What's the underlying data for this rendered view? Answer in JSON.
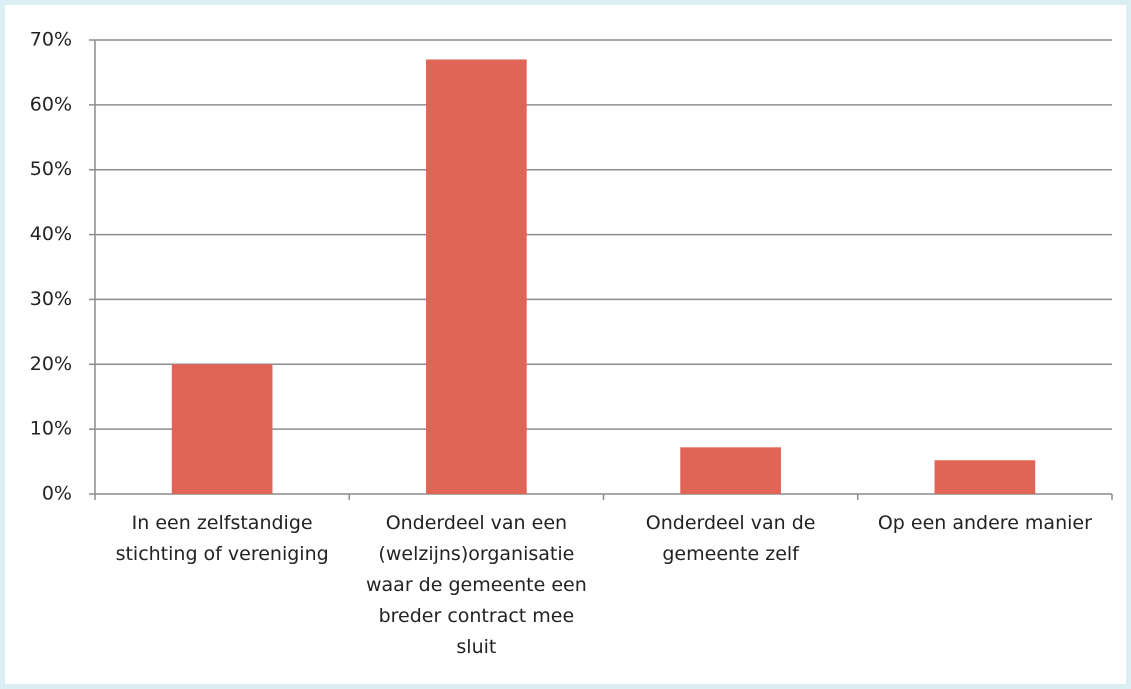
{
  "chart_data": {
    "type": "bar",
    "categories": [
      "In een zelfstandige stichting of vereniging",
      "Onderdeel van een (welzijns)organisatie waar de gemeente een breder contract mee sluit",
      "Onderdeel van de gemeente zelf",
      "Op een andere manier"
    ],
    "values": [
      20,
      67,
      7.2,
      5.2
    ],
    "color": "#e06557",
    "ylim": [
      0,
      70
    ],
    "yticks": [
      {
        "value": 0,
        "label": "0%"
      },
      {
        "value": 10,
        "label": "10%"
      },
      {
        "value": 20,
        "label": "20%"
      },
      {
        "value": 30,
        "label": "30%"
      },
      {
        "value": 40,
        "label": "40%"
      },
      {
        "value": 50,
        "label": "50%"
      },
      {
        "value": 60,
        "label": "60%"
      },
      {
        "value": 70,
        "label": "70%"
      }
    ],
    "grid": true
  }
}
